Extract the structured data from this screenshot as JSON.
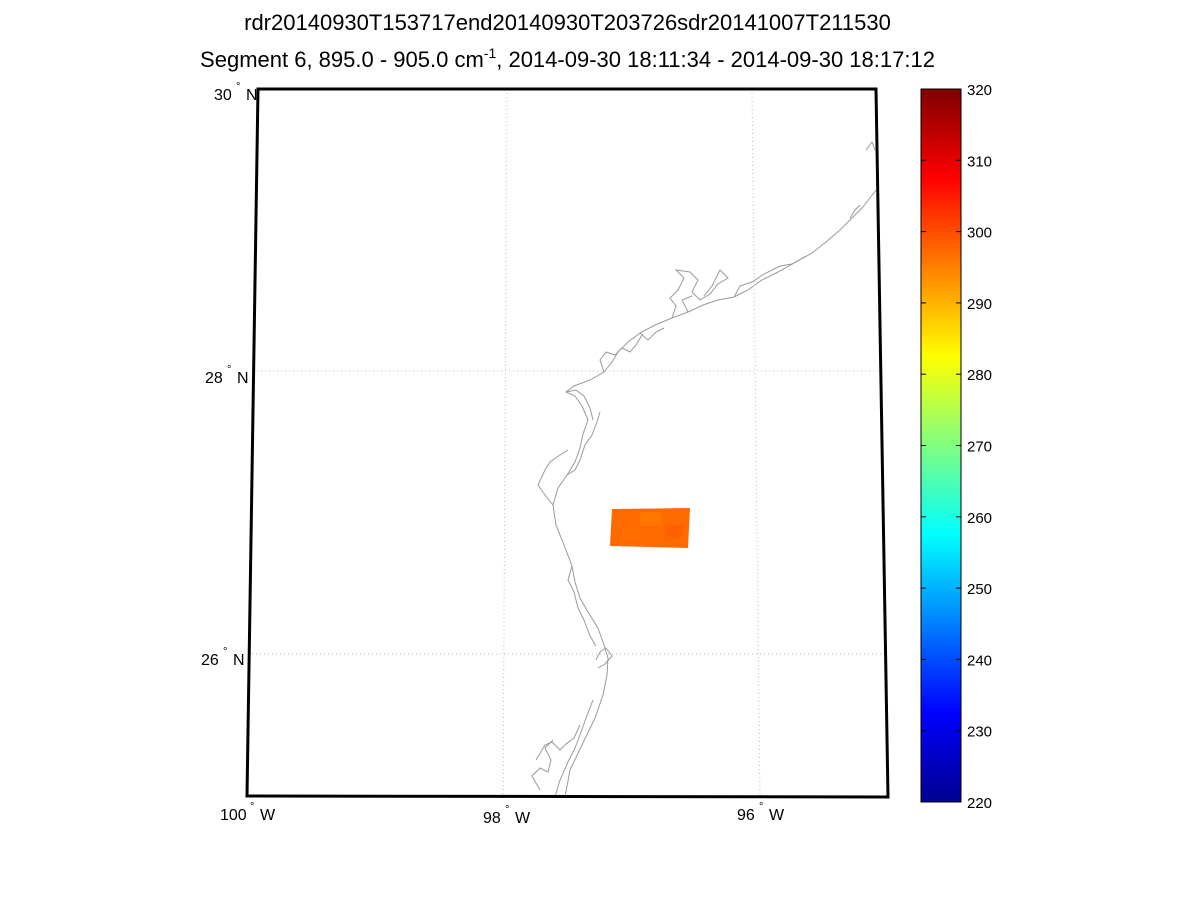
{
  "title": {
    "line1": "rdr20140930T153717end20140930T203726sdr20141007T211530",
    "line2_prefix": "Segment 6, 895.0 - 905.0 cm",
    "line2_sup": "-1",
    "line2_suffix": ", 2014-09-30 18:11:34 - 2014-09-30 18:17:12"
  },
  "map": {
    "lat_labels": [
      {
        "value": 30,
        "num": "30",
        "hemi": "N"
      },
      {
        "value": 28,
        "num": "28",
        "hemi": "N"
      },
      {
        "value": 26,
        "num": "26",
        "hemi": "N"
      }
    ],
    "lon_labels": [
      {
        "value": -100,
        "num": "100",
        "hemi": "W"
      },
      {
        "value": -98,
        "num": "98",
        "hemi": "W"
      },
      {
        "value": -96,
        "num": "96",
        "hemi": "W"
      }
    ],
    "grid": "dotted",
    "coastline_color": "#9a9a9a",
    "swath_color": "#ff6a00"
  },
  "colorbar": {
    "min": 220,
    "max": 320,
    "ticks": [
      "220",
      "230",
      "240",
      "250",
      "260",
      "270",
      "280",
      "290",
      "300",
      "310",
      "320"
    ],
    "colormap": "jet"
  }
}
